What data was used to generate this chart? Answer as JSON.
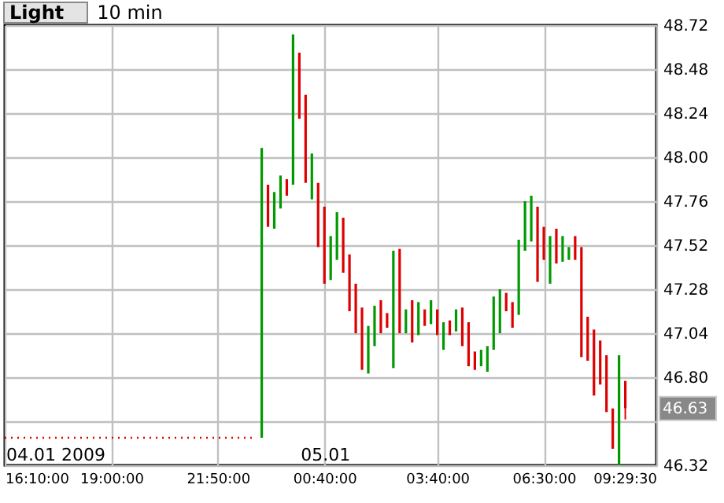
{
  "chart_data": {
    "type": "candlestick",
    "title": "Light",
    "subtitle": "10 min",
    "xlim": [
      "2009-01-04T16:10",
      "2009-01-05T09:29:30"
    ],
    "xticks": [
      {
        "value": "2009-01-04T16:10",
        "label": "16:10:00"
      },
      {
        "value": "2009-01-04T19:00",
        "label": "19:00:00"
      },
      {
        "value": "2009-01-04T21:50",
        "label": "21:50:00"
      },
      {
        "value": "2009-01-05T00:40",
        "label": "00:40:00"
      },
      {
        "value": "2009-01-05T03:40",
        "label": "03:40:00"
      },
      {
        "value": "2009-01-05T06:30",
        "label": "06:30:00"
      },
      {
        "value": "2009-01-05T09:29:30",
        "label": "09:29:30"
      }
    ],
    "ylim": [
      46.32,
      48.72
    ],
    "yticks": [
      46.32,
      {
        "value": 46.56,
        "label": null
      },
      {
        "value": 46.8,
        "label": "46.80"
      },
      47.04,
      47.28,
      47.52,
      47.76,
      {
        "value": 48,
        "label": "48.00"
      },
      48.24,
      48.48,
      48.72
    ],
    "grid": true,
    "series": [
      {
        "type": "line",
        "color": "#dd0000",
        "line_style": "dotted",
        "x": [
          "2009-01-04T16:10",
          "2009-01-04T22:50"
        ],
        "values": [
          46.47,
          46.47
        ]
      },
      {
        "x": [
          "2009-01-04T23:00",
          "2009-01-04T23:10",
          "2009-01-04T23:20",
          "2009-01-04T23:30",
          "2009-01-04T23:40",
          "2009-01-04T23:50",
          "2009-01-05T00:00",
          "2009-01-05T00:10",
          "2009-01-05T00:20",
          "2009-01-05T00:30",
          "2009-01-05T00:40",
          "2009-01-05T00:50",
          "2009-01-05T01:00",
          "2009-01-05T01:10",
          "2009-01-05T01:20",
          "2009-01-05T01:30",
          "2009-01-05T01:40",
          "2009-01-05T01:50",
          "2009-01-05T02:00",
          "2009-01-05T02:10",
          "2009-01-05T02:20",
          "2009-01-05T02:30",
          "2009-01-05T02:40",
          "2009-01-05T02:50",
          "2009-01-05T03:00",
          "2009-01-05T03:10",
          "2009-01-05T03:20",
          "2009-01-05T03:30",
          "2009-01-05T03:40",
          "2009-01-05T03:50",
          "2009-01-05T04:00",
          "2009-01-05T04:10",
          "2009-01-05T04:20",
          "2009-01-05T04:30",
          "2009-01-05T04:40",
          "2009-01-05T04:50",
          "2009-01-05T05:00",
          "2009-01-05T05:10",
          "2009-01-05T05:20",
          "2009-01-05T05:30",
          "2009-01-05T05:40",
          "2009-01-05T05:50",
          "2009-01-05T06:00",
          "2009-01-05T06:10",
          "2009-01-05T06:20",
          "2009-01-05T06:30",
          "2009-01-05T06:40",
          "2009-01-05T06:50",
          "2009-01-05T07:00",
          "2009-01-05T07:10",
          "2009-01-05T07:20",
          "2009-01-05T07:30",
          "2009-01-05T07:40",
          "2009-01-05T07:50",
          "2009-01-05T08:00",
          "2009-01-05T08:10",
          "2009-01-05T08:20",
          "2009-01-05T08:30",
          "2009-01-05T08:40"
        ],
        "ohlc": [
          [
            46.47,
            48.05,
            46.47,
            48.05
          ],
          [
            47.85,
            47.85,
            47.62,
            47.62
          ],
          [
            47.61,
            47.81,
            47.61,
            47.81
          ],
          [
            47.72,
            47.9,
            47.72,
            47.9
          ],
          [
            47.88,
            47.88,
            47.79,
            47.79
          ],
          [
            47.85,
            48.67,
            47.85,
            48.67
          ],
          [
            48.57,
            48.57,
            48.21,
            48.21
          ],
          [
            48.34,
            48.34,
            47.86,
            47.86
          ],
          [
            47.77,
            48.02,
            47.77,
            48.02
          ],
          [
            47.86,
            47.86,
            47.51,
            47.51
          ],
          [
            47.73,
            47.73,
            47.31,
            47.31
          ],
          [
            47.33,
            47.57,
            47.33,
            47.57
          ],
          [
            47.44,
            47.7,
            47.44,
            47.7
          ],
          [
            47.67,
            47.67,
            47.37,
            47.37
          ],
          [
            47.47,
            47.47,
            47.16,
            47.16
          ],
          [
            47.31,
            47.31,
            47.04,
            47.04
          ],
          [
            47.18,
            47.18,
            46.84,
            46.84
          ],
          [
            46.82,
            47.08,
            46.82,
            47.08
          ],
          [
            46.97,
            47.19,
            46.97,
            47.19
          ],
          [
            47.22,
            47.22,
            47.04,
            47.04
          ],
          [
            47.15,
            47.15,
            47.07,
            47.07
          ],
          [
            46.85,
            47.49,
            46.85,
            47.49
          ],
          [
            47.5,
            47.5,
            47.04,
            47.04
          ],
          [
            47.04,
            47.17,
            47.04,
            47.17
          ],
          [
            47.22,
            47.22,
            46.99,
            46.99
          ],
          [
            47.03,
            47.21,
            47.03,
            47.21
          ],
          [
            47.17,
            47.17,
            47.08,
            47.08
          ],
          [
            47.09,
            47.22,
            47.09,
            47.22
          ],
          [
            47.17,
            47.17,
            47.03,
            47.03
          ],
          [
            46.95,
            47.1,
            46.95,
            47.1
          ],
          [
            47.11,
            47.11,
            47.03,
            47.03
          ],
          [
            47.05,
            47.17,
            47.05,
            47.17
          ],
          [
            47.18,
            47.18,
            46.97,
            46.97
          ],
          [
            47.1,
            47.1,
            46.86,
            46.86
          ],
          [
            46.94,
            46.94,
            46.84,
            46.84
          ],
          [
            46.86,
            46.95,
            46.86,
            46.95
          ],
          [
            46.83,
            46.97,
            46.83,
            46.97
          ],
          [
            46.95,
            47.24,
            46.95,
            47.24
          ],
          [
            47.04,
            47.28,
            47.04,
            47.28
          ],
          [
            47.26,
            47.26,
            47.16,
            47.16
          ],
          [
            47.21,
            47.21,
            47.07,
            47.07
          ],
          [
            47.14,
            47.55,
            47.14,
            47.55
          ],
          [
            47.49,
            47.76,
            47.49,
            47.76
          ],
          [
            47.54,
            47.79,
            47.54,
            47.79
          ],
          [
            47.73,
            47.73,
            47.32,
            47.32
          ],
          [
            47.62,
            47.62,
            47.44,
            47.44
          ],
          [
            47.31,
            47.57,
            47.31,
            47.57
          ],
          [
            47.61,
            47.61,
            47.42,
            47.42
          ],
          [
            47.43,
            47.57,
            47.43,
            47.57
          ],
          [
            47.44,
            47.51,
            47.44,
            47.51
          ],
          [
            47.57,
            47.57,
            47.44,
            47.44
          ],
          [
            47.51,
            47.51,
            46.91,
            46.91
          ],
          [
            47.13,
            47.13,
            46.89,
            46.89
          ],
          [
            47.06,
            47.06,
            46.7,
            46.7
          ],
          [
            47.0,
            47.0,
            46.76,
            46.76
          ],
          [
            46.92,
            46.92,
            46.61,
            46.61
          ],
          [
            46.63,
            46.63,
            46.41,
            46.41
          ],
          [
            46.32,
            46.92,
            46.32,
            46.92
          ],
          [
            46.78,
            46.78,
            46.57,
            46.63
          ]
        ],
        "colors": [
          "#009900",
          "#dd0000",
          "#009900",
          "#009900",
          "#dd0000",
          "#009900",
          "#dd0000",
          "#dd0000",
          "#009900",
          "#dd0000",
          "#dd0000",
          "#009900",
          "#009900",
          "#dd0000",
          "#dd0000",
          "#dd0000",
          "#dd0000",
          "#009900",
          "#009900",
          "#dd0000",
          "#dd0000",
          "#009900",
          "#dd0000",
          "#009900",
          "#dd0000",
          "#009900",
          "#dd0000",
          "#009900",
          "#dd0000",
          "#009900",
          "#dd0000",
          "#009900",
          "#dd0000",
          "#dd0000",
          "#dd0000",
          "#009900",
          "#009900",
          "#009900",
          "#009900",
          "#dd0000",
          "#dd0000",
          "#009900",
          "#009900",
          "#009900",
          "#dd0000",
          "#dd0000",
          "#009900",
          "#dd0000",
          "#009900",
          "#009900",
          "#dd0000",
          "#dd0000",
          "#dd0000",
          "#dd0000",
          "#dd0000",
          "#dd0000",
          "#dd0000",
          "#009900",
          "#dd0000"
        ]
      }
    ],
    "annotations": [
      "04.01 2009",
      "05.01",
      {
        "text": "46.63",
        "y": 46.63
      }
    ]
  }
}
